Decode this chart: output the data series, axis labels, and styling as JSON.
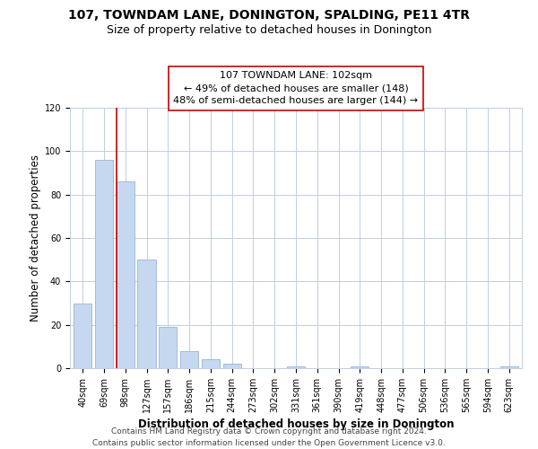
{
  "title": "107, TOWNDAM LANE, DONINGTON, SPALDING, PE11 4TR",
  "subtitle": "Size of property relative to detached houses in Donington",
  "xlabel": "Distribution of detached houses by size in Donington",
  "ylabel": "Number of detached properties",
  "categories": [
    "40sqm",
    "69sqm",
    "98sqm",
    "127sqm",
    "157sqm",
    "186sqm",
    "215sqm",
    "244sqm",
    "273sqm",
    "302sqm",
    "331sqm",
    "361sqm",
    "390sqm",
    "419sqm",
    "448sqm",
    "477sqm",
    "506sqm",
    "536sqm",
    "565sqm",
    "594sqm",
    "623sqm"
  ],
  "values": [
    30,
    96,
    86,
    50,
    19,
    8,
    4,
    2,
    0,
    0,
    1,
    0,
    0,
    1,
    0,
    0,
    0,
    0,
    0,
    0,
    1
  ],
  "bar_color": "#c5d8f0",
  "bar_edge_color": "#9ab5d5",
  "marker_color": "#cc0000",
  "annotation_text": "107 TOWNDAM LANE: 102sqm\n← 49% of detached houses are smaller (148)\n48% of semi-detached houses are larger (144) →",
  "annotation_box_color": "#ffffff",
  "annotation_box_edge": "#cc0000",
  "ylim": [
    0,
    120
  ],
  "yticks": [
    0,
    20,
    40,
    60,
    80,
    100,
    120
  ],
  "footer": "Contains HM Land Registry data © Crown copyright and database right 2024.\nContains public sector information licensed under the Open Government Licence v3.0.",
  "bg_color": "#ffffff",
  "grid_color": "#c0cfe0",
  "title_fontsize": 10,
  "subtitle_fontsize": 9,
  "axis_label_fontsize": 8.5,
  "tick_fontsize": 7,
  "annotation_fontsize": 8,
  "footer_fontsize": 6.5
}
